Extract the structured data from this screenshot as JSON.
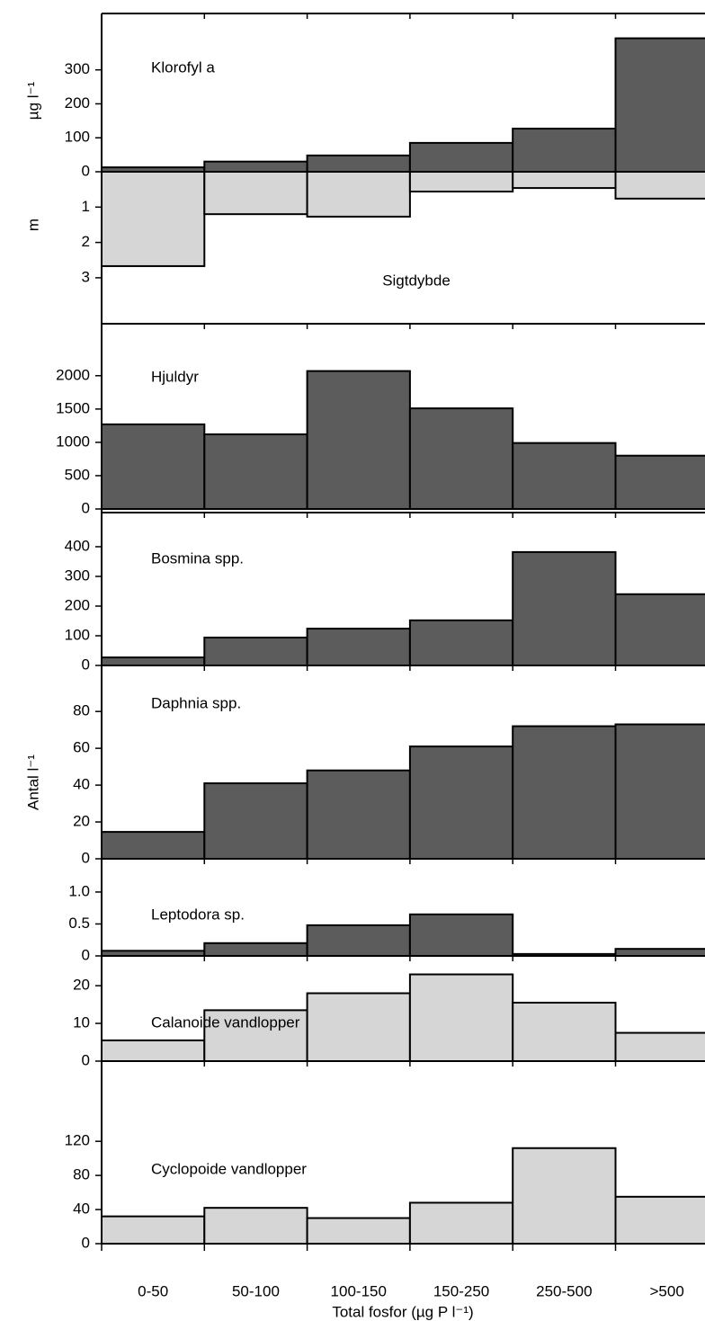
{
  "chart_data": [
    {
      "type": "bar",
      "title": "Klorofyl a",
      "ylabel": "µg l⁻¹",
      "values": [
        13,
        30,
        48,
        85,
        127,
        393
      ],
      "color": "#5c5c5c",
      "ylim": [
        0,
        466
      ],
      "yticks": [
        0,
        100,
        200,
        300
      ]
    },
    {
      "type": "bar",
      "title": "Sigtdybde",
      "ylabel": "m",
      "values": [
        2.67,
        1.2,
        1.27,
        0.56,
        0.46,
        0.76
      ],
      "color": "#d6d6d6",
      "ylim": [
        0,
        4.3
      ],
      "yticks": [
        1,
        2,
        3
      ],
      "inverted": true
    },
    {
      "type": "bar",
      "title": "Hjuldyr",
      "values": [
        1270,
        1120,
        2070,
        1510,
        990,
        800
      ],
      "color": "#5c5c5c",
      "ylim": [
        0,
        2780
      ],
      "yticks": [
        0,
        500,
        1000,
        1500,
        2000
      ]
    },
    {
      "type": "bar",
      "title": "Bosmina spp.",
      "values": [
        27,
        94,
        124,
        152,
        382,
        240
      ],
      "color": "#5c5c5c",
      "ylim": [
        0,
        515
      ],
      "yticks": [
        0,
        100,
        200,
        300,
        400
      ]
    },
    {
      "type": "bar",
      "title": "Daphnia spp.",
      "ylabel": "Antal l⁻¹",
      "values": [
        14.6,
        41,
        48,
        61,
        72,
        73
      ],
      "color": "#5c5c5c",
      "ylim": [
        0,
        105
      ],
      "yticks": [
        0,
        20,
        40,
        60,
        80
      ]
    },
    {
      "type": "bar",
      "title": "Leptodora sp.",
      "values": [
        0.08,
        0.2,
        0.48,
        0.65,
        0.03,
        0.11
      ],
      "color": "#5c5c5c",
      "ylim": [
        0,
        1.52
      ],
      "yticks": [
        0,
        0.5,
        {
          "value": 1,
          "label": "1.0"
        }
      ]
    },
    {
      "type": "bar",
      "title": "Calanoide vandlopper",
      "values": [
        5.5,
        13.5,
        18,
        23,
        15.5,
        7.5
      ],
      "color": "#d6d6d6",
      "ylim": [
        0,
        27.9
      ],
      "yticks": [
        0,
        10,
        20
      ]
    },
    {
      "type": "bar",
      "title": "Cyclopoide vandlopper",
      "values": [
        32,
        42,
        30,
        48,
        112,
        55
      ],
      "color": "#d6d6d6",
      "ylim": [
        0,
        214
      ],
      "yticks": [
        0,
        40,
        80,
        120
      ],
      "categories": [
        "0-50",
        "50-100",
        "100-150",
        "150-250",
        "250-500",
        ">500"
      ],
      "xlabel": "Total fosfor (µg P l⁻¹)"
    }
  ]
}
